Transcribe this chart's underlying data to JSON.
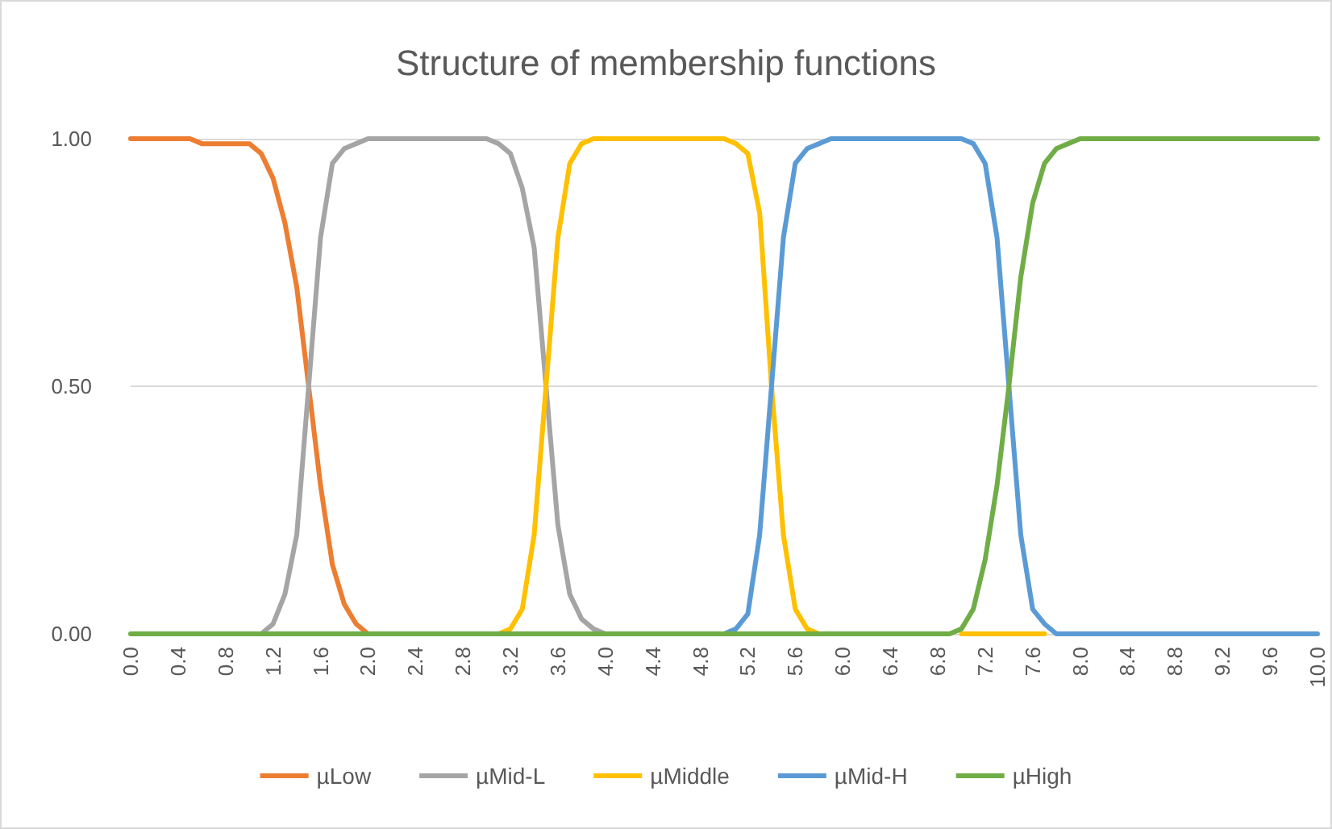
{
  "chart_data": {
    "type": "line",
    "title": "Structure of membership functions",
    "categories": [
      "0.0",
      null,
      null,
      null,
      "0.4",
      null,
      null,
      null,
      "0.8",
      null,
      null,
      null,
      "1.2",
      null,
      null,
      null,
      "1.6",
      null,
      null,
      null,
      "2.0",
      null,
      null,
      null,
      "2.4",
      null,
      null,
      null,
      "2.8",
      null,
      null,
      null,
      "3.2",
      null,
      null,
      null,
      "3.6",
      null,
      null,
      null,
      "4.0",
      null,
      null,
      null,
      "4.4",
      null,
      null,
      null,
      "4.8",
      null,
      null,
      null,
      "5.2",
      null,
      null,
      null,
      "5.6",
      null,
      null,
      null,
      "6.0",
      null,
      null,
      null,
      "6.4",
      null,
      null,
      null,
      "6.8",
      null,
      null,
      null,
      "7.2",
      null,
      null,
      null,
      "7.6",
      null,
      null,
      null,
      "8.0",
      null,
      null,
      null,
      "8.4",
      null,
      null,
      null,
      "8.8",
      null,
      null,
      null,
      "9.2",
      null,
      null,
      null,
      "9.6",
      null,
      null,
      null,
      "10.0"
    ],
    "series": [
      {
        "name": "µLow",
        "color": "#ed7d31",
        "values": [
          1,
          1,
          1,
          1,
          1,
          1,
          0.99,
          0.99,
          0.99,
          0.99,
          0.99,
          0.97,
          0.92,
          0.83,
          0.7,
          0.5,
          0.3,
          0.14,
          0.06,
          0.02,
          0,
          null,
          null,
          null,
          null,
          null,
          null,
          null,
          null,
          null,
          null,
          null,
          null,
          null,
          null,
          null,
          null,
          null,
          null,
          null,
          null,
          null,
          null,
          null,
          null,
          null,
          null,
          null,
          null,
          null,
          null,
          null,
          null,
          null,
          null,
          null,
          null,
          null,
          null,
          null,
          null,
          null,
          null,
          null,
          null,
          null,
          null,
          null,
          null,
          null,
          null,
          null,
          null,
          null,
          null,
          null,
          null,
          null,
          null,
          null,
          null,
          null,
          null,
          null,
          null,
          null,
          null,
          null,
          null,
          null,
          null,
          null,
          null,
          null,
          null,
          null,
          null,
          null,
          null,
          null,
          null
        ]
      },
      {
        "name": "µMid-L",
        "color": "#a5a5a5",
        "values": [
          null,
          null,
          null,
          null,
          null,
          null,
          null,
          null,
          null,
          null,
          null,
          0,
          0.02,
          0.08,
          0.2,
          0.5,
          0.8,
          0.95,
          0.98,
          0.99,
          1,
          1,
          1,
          1,
          1,
          1,
          1,
          1,
          1,
          1,
          1,
          0.99,
          0.97,
          0.9,
          0.78,
          0.5,
          0.22,
          0.08,
          0.03,
          0.01,
          0,
          null,
          null,
          null,
          null,
          null,
          null,
          null,
          null,
          null,
          null,
          null,
          null,
          null,
          null,
          null,
          null,
          null,
          null,
          null,
          null,
          null,
          null,
          null,
          null,
          null,
          null,
          null,
          null,
          null,
          null,
          null,
          null,
          null,
          null,
          null,
          null,
          null,
          null,
          null,
          null,
          null,
          null,
          null,
          null,
          null,
          null,
          null,
          null,
          null,
          null,
          null,
          null,
          null,
          null,
          null,
          null,
          null,
          null,
          null,
          null
        ]
      },
      {
        "name": "µMiddle",
        "color": "#ffc000",
        "values": [
          null,
          null,
          null,
          null,
          null,
          null,
          null,
          null,
          null,
          null,
          null,
          null,
          null,
          null,
          null,
          null,
          null,
          null,
          null,
          null,
          null,
          null,
          null,
          null,
          null,
          null,
          null,
          null,
          null,
          null,
          null,
          0,
          0.01,
          0.05,
          0.2,
          0.5,
          0.8,
          0.95,
          0.99,
          1,
          1,
          1,
          1,
          1,
          1,
          1,
          1,
          1,
          1,
          1,
          1,
          0.99,
          0.97,
          0.85,
          0.5,
          0.2,
          0.05,
          0.01,
          0,
          null,
          null,
          null,
          null,
          null,
          null,
          null,
          null,
          null,
          null,
          null,
          0,
          0,
          0,
          0,
          0,
          0,
          0,
          0,
          null,
          null,
          null,
          null,
          null,
          null,
          null,
          null,
          null,
          null,
          null,
          null,
          null,
          null,
          null,
          null,
          null,
          null,
          null,
          null,
          null,
          null,
          null
        ]
      },
      {
        "name": "µMid-H",
        "color": "#5b9bd5",
        "values": [
          null,
          null,
          null,
          null,
          null,
          null,
          null,
          null,
          null,
          null,
          null,
          null,
          null,
          null,
          null,
          null,
          null,
          null,
          null,
          null,
          null,
          null,
          null,
          null,
          null,
          null,
          null,
          null,
          null,
          null,
          null,
          null,
          null,
          null,
          null,
          null,
          null,
          null,
          null,
          null,
          null,
          null,
          null,
          null,
          null,
          null,
          null,
          null,
          null,
          null,
          0,
          0.01,
          0.04,
          0.2,
          0.5,
          0.8,
          0.95,
          0.98,
          0.99,
          1,
          1,
          1,
          1,
          1,
          1,
          1,
          1,
          1,
          1,
          1,
          1,
          0.99,
          0.95,
          0.8,
          0.5,
          0.2,
          0.05,
          0.02,
          0,
          0,
          0,
          0,
          0,
          0,
          0,
          0,
          0,
          0,
          0,
          0,
          0,
          0,
          0,
          0,
          0,
          0,
          0,
          0,
          0,
          0,
          0
        ]
      },
      {
        "name": "µHigh",
        "color": "#70ad47",
        "values": [
          0,
          0,
          0,
          0,
          0,
          0,
          0,
          0,
          0,
          0,
          0,
          0,
          0,
          0,
          0,
          0,
          0,
          0,
          0,
          0,
          0,
          0,
          0,
          0,
          0,
          0,
          0,
          0,
          0,
          0,
          0,
          0,
          0,
          0,
          0,
          0,
          0,
          0,
          0,
          0,
          0,
          0,
          0,
          0,
          0,
          0,
          0,
          0,
          0,
          0,
          0,
          0,
          0,
          0,
          0,
          0,
          0,
          0,
          0,
          0,
          0,
          0,
          0,
          0,
          0,
          0,
          0,
          0,
          0,
          0,
          0.01,
          0.05,
          0.15,
          0.3,
          0.5,
          0.72,
          0.87,
          0.95,
          0.98,
          0.99,
          1,
          1,
          1,
          1,
          1,
          1,
          1,
          1,
          1,
          1,
          1,
          1,
          1,
          1,
          1,
          1,
          1,
          1,
          1,
          1,
          1
        ]
      }
    ],
    "ylim": [
      0,
      1
    ],
    "yticks": [
      {
        "value": 0,
        "label": "0.00"
      },
      {
        "value": 0.5,
        "label": "0.50"
      },
      {
        "value": 1,
        "label": "1.00"
      }
    ],
    "grid": "y",
    "legend": "bottom",
    "marker": "none",
    "line_style": "solid"
  }
}
